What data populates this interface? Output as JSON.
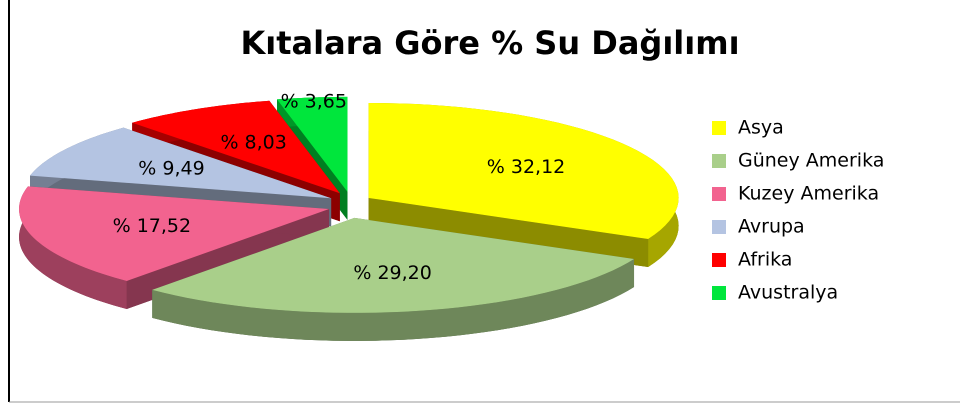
{
  "chart_data": {
    "type": "pie",
    "title": "Kıtalara Göre % Su Dağılımı",
    "categories": [
      "Asya",
      "Güney Amerika",
      "Kuzey Amerika",
      "Avrupa",
      "Afrika",
      "Avustralya"
    ],
    "values": [
      32.12,
      29.2,
      17.52,
      9.49,
      8.03,
      3.65
    ],
    "value_labels": [
      "% 32,12",
      "% 29,20",
      "% 17,52",
      "% 9,49",
      "% 8,03",
      "% 3,65"
    ],
    "colors": [
      "#ffff00",
      "#a9cf8a",
      "#f2638f",
      "#b4c4e2",
      "#ff0000",
      "#00e63c"
    ],
    "legend": "right"
  }
}
